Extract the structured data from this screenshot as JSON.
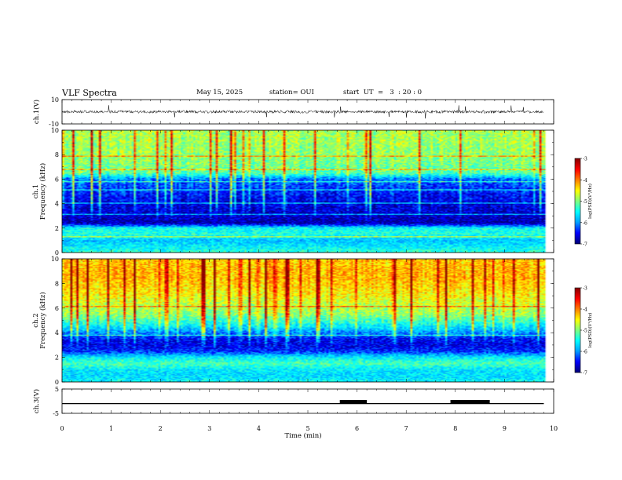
{
  "header": {
    "title": "VLF Spectra",
    "date": "May 15, 2025",
    "station": "station= OUI",
    "start": "start  UT  =   3  : 20 : 0"
  },
  "colors": {
    "colormap": [
      "#00007a",
      "#0000ff",
      "#00a0ff",
      "#00ffff",
      "#7fff7f",
      "#ffff00",
      "#ff8000",
      "#ff0000",
      "#8a0000"
    ],
    "trace": "#000000",
    "background": "#ffffff"
  },
  "chart_data": [
    {
      "type": "line",
      "panel": "ch1-waveform",
      "ylabel": "ch.1(V)",
      "ylim": [
        -10,
        10
      ],
      "yticks": [
        "10",
        "-10"
      ],
      "xlim": [
        0,
        10
      ],
      "trace_span_min": [
        0,
        9.8
      ],
      "baseline": 0,
      "description_values": {
        "noise_amplitude_v": 1.2,
        "spike_amplitude_v": 5
      }
    },
    {
      "type": "heatmap",
      "panel": "ch1-spectrogram",
      "ylabel": "ch.1\nFrequency (kHz)",
      "ylim": [
        0,
        10
      ],
      "yticks": [
        "0",
        "2",
        "4",
        "6",
        "8",
        "10"
      ],
      "xlim": [
        0,
        10
      ],
      "colorbar": {
        "label": "log(PSD)(V²/Hz)",
        "range": [
          -7,
          -3
        ],
        "ticks": [
          "-3",
          "-4",
          "-5",
          "-6",
          "-7"
        ]
      },
      "profile_logpsd": [
        {
          "f_khz": 0.0,
          "value": -5.3
        },
        {
          "f_khz": 0.5,
          "value": -5.6
        },
        {
          "f_khz": 1.0,
          "value": -5.8
        },
        {
          "f_khz": 1.5,
          "value": -5.4
        },
        {
          "f_khz": 2.0,
          "value": -5.5
        },
        {
          "f_khz": 2.4,
          "value": -6.8
        },
        {
          "f_khz": 3.0,
          "value": -6.7
        },
        {
          "f_khz": 4.0,
          "value": -6.6
        },
        {
          "f_khz": 5.0,
          "value": -6.4
        },
        {
          "f_khz": 6.0,
          "value": -6.1
        },
        {
          "f_khz": 6.5,
          "value": -5.1
        },
        {
          "f_khz": 8.0,
          "value": -4.9
        },
        {
          "f_khz": 10.0,
          "value": -4.8
        }
      ]
    },
    {
      "type": "heatmap",
      "panel": "ch2-spectrogram",
      "ylabel": "ch.2\nFrequency (kHz)",
      "ylim": [
        0,
        10
      ],
      "yticks": [
        "0",
        "2",
        "4",
        "6",
        "8",
        "10"
      ],
      "xlim": [
        0,
        10
      ],
      "colorbar": {
        "label": "log(PSD)(V²/Hz)",
        "range": [
          -7,
          -3
        ],
        "ticks": [
          "-3",
          "-4",
          "-5",
          "-6",
          "-7"
        ]
      },
      "profile_logpsd": [
        {
          "f_khz": 0.0,
          "value": -5.5
        },
        {
          "f_khz": 0.5,
          "value": -5.7
        },
        {
          "f_khz": 1.0,
          "value": -5.6
        },
        {
          "f_khz": 1.5,
          "value": -5.2
        },
        {
          "f_khz": 2.0,
          "value": -5.6
        },
        {
          "f_khz": 2.5,
          "value": -6.4
        },
        {
          "f_khz": 3.0,
          "value": -6.6
        },
        {
          "f_khz": 3.5,
          "value": -6.5
        },
        {
          "f_khz": 4.5,
          "value": -5.6
        },
        {
          "f_khz": 5.5,
          "value": -4.9
        },
        {
          "f_khz": 7.0,
          "value": -4.5
        },
        {
          "f_khz": 8.5,
          "value": -4.2
        },
        {
          "f_khz": 10.0,
          "value": -4.3
        }
      ]
    },
    {
      "type": "line",
      "panel": "ch3-level",
      "ylabel": "ch.3(V)",
      "ylim": [
        -5,
        5
      ],
      "yticks": [
        "5",
        "-5"
      ],
      "xlim": [
        0,
        10
      ],
      "xlabel": "Time  (min)",
      "xticks": [
        "0",
        "1",
        "2",
        "3",
        "4",
        "5",
        "6",
        "7",
        "8",
        "9",
        "10"
      ],
      "baseline_v": -1,
      "trace_span_min": [
        0,
        9.8
      ],
      "raised_segments": [
        {
          "x0": 5.65,
          "x1": 6.2,
          "v": 0.5
        },
        {
          "x0": 7.9,
          "x1": 8.7,
          "v": 0.5
        }
      ]
    }
  ]
}
